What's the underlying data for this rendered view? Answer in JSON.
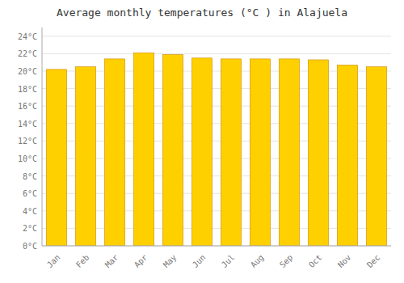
{
  "chart_data": {
    "type": "bar",
    "title": "Average monthly temperatures (°C ) in Alajuela",
    "categories": [
      "Jan",
      "Feb",
      "Mar",
      "Apr",
      "May",
      "Jun",
      "Jul",
      "Aug",
      "Sep",
      "Oct",
      "Nov",
      "Dec"
    ],
    "values": [
      20.2,
      20.5,
      21.4,
      22.1,
      21.9,
      21.5,
      21.4,
      21.4,
      21.4,
      21.3,
      20.7,
      20.5
    ],
    "color": "#FFD000",
    "ylim": [
      0,
      25
    ],
    "yticks": [
      {
        "value": 0,
        "label": "0°C"
      },
      {
        "value": 2,
        "label": "2°C"
      },
      {
        "value": 4,
        "label": "4°C"
      },
      {
        "value": 6,
        "label": "6°C"
      },
      {
        "value": 8,
        "label": "8°C"
      },
      {
        "value": 10,
        "label": "10°C"
      },
      {
        "value": 12,
        "label": "12°C"
      },
      {
        "value": 14,
        "label": "14°C"
      },
      {
        "value": 16,
        "label": "16°C"
      },
      {
        "value": 18,
        "label": "18°C"
      },
      {
        "value": 20,
        "label": "20°C"
      },
      {
        "value": 22,
        "label": "22°C"
      },
      {
        "value": 24,
        "label": "24°C"
      }
    ],
    "grid": true
  }
}
